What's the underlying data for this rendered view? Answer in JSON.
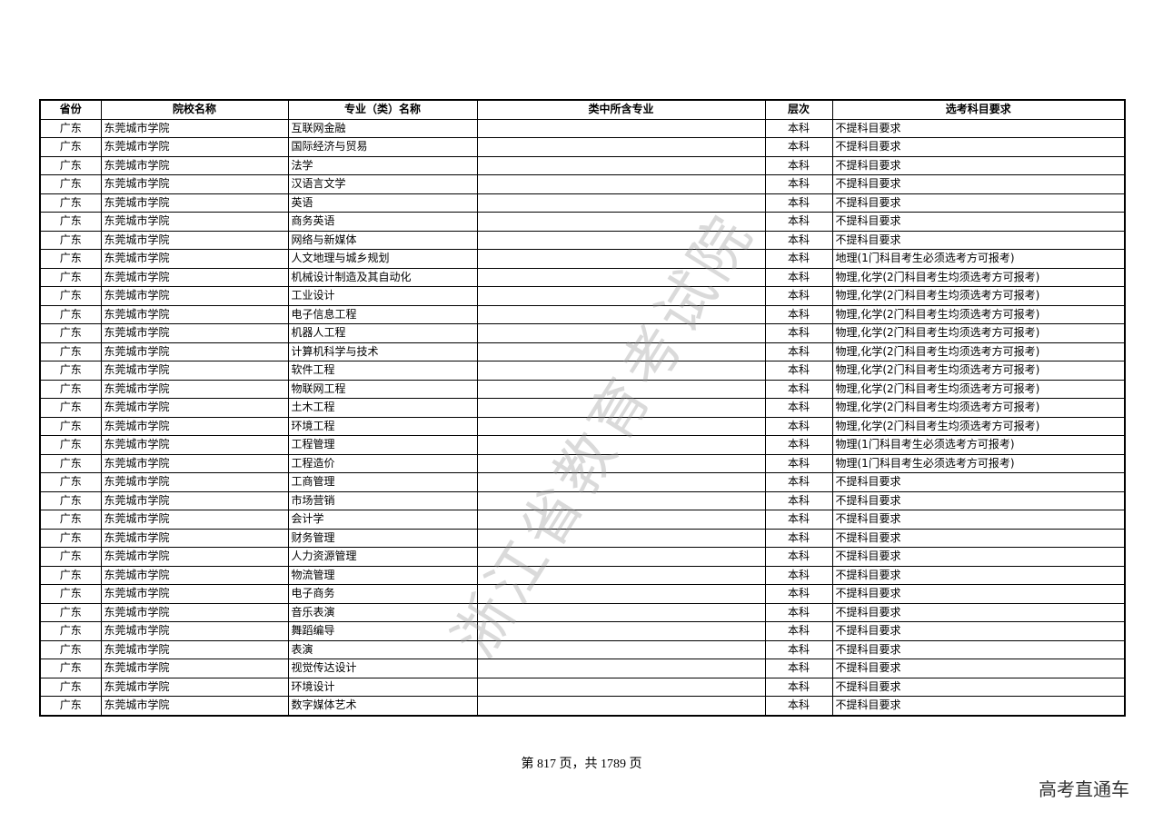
{
  "headers": [
    "省份",
    "院校名称",
    "专业（类）名称",
    "类中所含专业",
    "层次",
    "选考科目要求"
  ],
  "rows": [
    [
      "广东",
      "东莞城市学院",
      "互联网金融",
      "",
      "本科",
      "不提科目要求"
    ],
    [
      "广东",
      "东莞城市学院",
      "国际经济与贸易",
      "",
      "本科",
      "不提科目要求"
    ],
    [
      "广东",
      "东莞城市学院",
      "法学",
      "",
      "本科",
      "不提科目要求"
    ],
    [
      "广东",
      "东莞城市学院",
      "汉语言文学",
      "",
      "本科",
      "不提科目要求"
    ],
    [
      "广东",
      "东莞城市学院",
      "英语",
      "",
      "本科",
      "不提科目要求"
    ],
    [
      "广东",
      "东莞城市学院",
      "商务英语",
      "",
      "本科",
      "不提科目要求"
    ],
    [
      "广东",
      "东莞城市学院",
      "网络与新媒体",
      "",
      "本科",
      "不提科目要求"
    ],
    [
      "广东",
      "东莞城市学院",
      "人文地理与城乡规划",
      "",
      "本科",
      "地理(1门科目考生必须选考方可报考)"
    ],
    [
      "广东",
      "东莞城市学院",
      "机械设计制造及其自动化",
      "",
      "本科",
      "物理,化学(2门科目考生均须选考方可报考)"
    ],
    [
      "广东",
      "东莞城市学院",
      "工业设计",
      "",
      "本科",
      "物理,化学(2门科目考生均须选考方可报考)"
    ],
    [
      "广东",
      "东莞城市学院",
      "电子信息工程",
      "",
      "本科",
      "物理,化学(2门科目考生均须选考方可报考)"
    ],
    [
      "广东",
      "东莞城市学院",
      "机器人工程",
      "",
      "本科",
      "物理,化学(2门科目考生均须选考方可报考)"
    ],
    [
      "广东",
      "东莞城市学院",
      "计算机科学与技术",
      "",
      "本科",
      "物理,化学(2门科目考生均须选考方可报考)"
    ],
    [
      "广东",
      "东莞城市学院",
      "软件工程",
      "",
      "本科",
      "物理,化学(2门科目考生均须选考方可报考)"
    ],
    [
      "广东",
      "东莞城市学院",
      "物联网工程",
      "",
      "本科",
      "物理,化学(2门科目考生均须选考方可报考)"
    ],
    [
      "广东",
      "东莞城市学院",
      "土木工程",
      "",
      "本科",
      "物理,化学(2门科目考生均须选考方可报考)"
    ],
    [
      "广东",
      "东莞城市学院",
      "环境工程",
      "",
      "本科",
      "物理,化学(2门科目考生均须选考方可报考)"
    ],
    [
      "广东",
      "东莞城市学院",
      "工程管理",
      "",
      "本科",
      "物理(1门科目考生必须选考方可报考)"
    ],
    [
      "广东",
      "东莞城市学院",
      "工程造价",
      "",
      "本科",
      "物理(1门科目考生必须选考方可报考)"
    ],
    [
      "广东",
      "东莞城市学院",
      "工商管理",
      "",
      "本科",
      "不提科目要求"
    ],
    [
      "广东",
      "东莞城市学院",
      "市场营销",
      "",
      "本科",
      "不提科目要求"
    ],
    [
      "广东",
      "东莞城市学院",
      "会计学",
      "",
      "本科",
      "不提科目要求"
    ],
    [
      "广东",
      "东莞城市学院",
      "财务管理",
      "",
      "本科",
      "不提科目要求"
    ],
    [
      "广东",
      "东莞城市学院",
      "人力资源管理",
      "",
      "本科",
      "不提科目要求"
    ],
    [
      "广东",
      "东莞城市学院",
      "物流管理",
      "",
      "本科",
      "不提科目要求"
    ],
    [
      "广东",
      "东莞城市学院",
      "电子商务",
      "",
      "本科",
      "不提科目要求"
    ],
    [
      "广东",
      "东莞城市学院",
      "音乐表演",
      "",
      "本科",
      "不提科目要求"
    ],
    [
      "广东",
      "东莞城市学院",
      "舞蹈编导",
      "",
      "本科",
      "不提科目要求"
    ],
    [
      "广东",
      "东莞城市学院",
      "表演",
      "",
      "本科",
      "不提科目要求"
    ],
    [
      "广东",
      "东莞城市学院",
      "视觉传达设计",
      "",
      "本科",
      "不提科目要求"
    ],
    [
      "广东",
      "东莞城市学院",
      "环境设计",
      "",
      "本科",
      "不提科目要求"
    ],
    [
      "广东",
      "东莞城市学院",
      "数字媒体艺术",
      "",
      "本科",
      "不提科目要求"
    ]
  ],
  "watermark": "浙江省教育考试院",
  "footer": "第 817 页，共 1789 页",
  "brand": "高考直通车"
}
